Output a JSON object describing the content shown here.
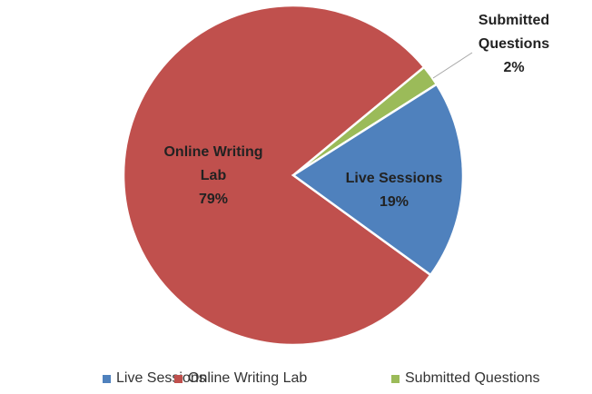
{
  "chart_data": {
    "type": "pie",
    "categories": [
      "Live Sessions",
      "Online Writing Lab",
      "Submitted Questions"
    ],
    "values": [
      19,
      79,
      2
    ],
    "value_labels": [
      "19%",
      "79%",
      "2%"
    ],
    "colors": [
      "#4f81bd",
      "#c0504d",
      "#9bbb59"
    ],
    "legend": "bottom"
  }
}
